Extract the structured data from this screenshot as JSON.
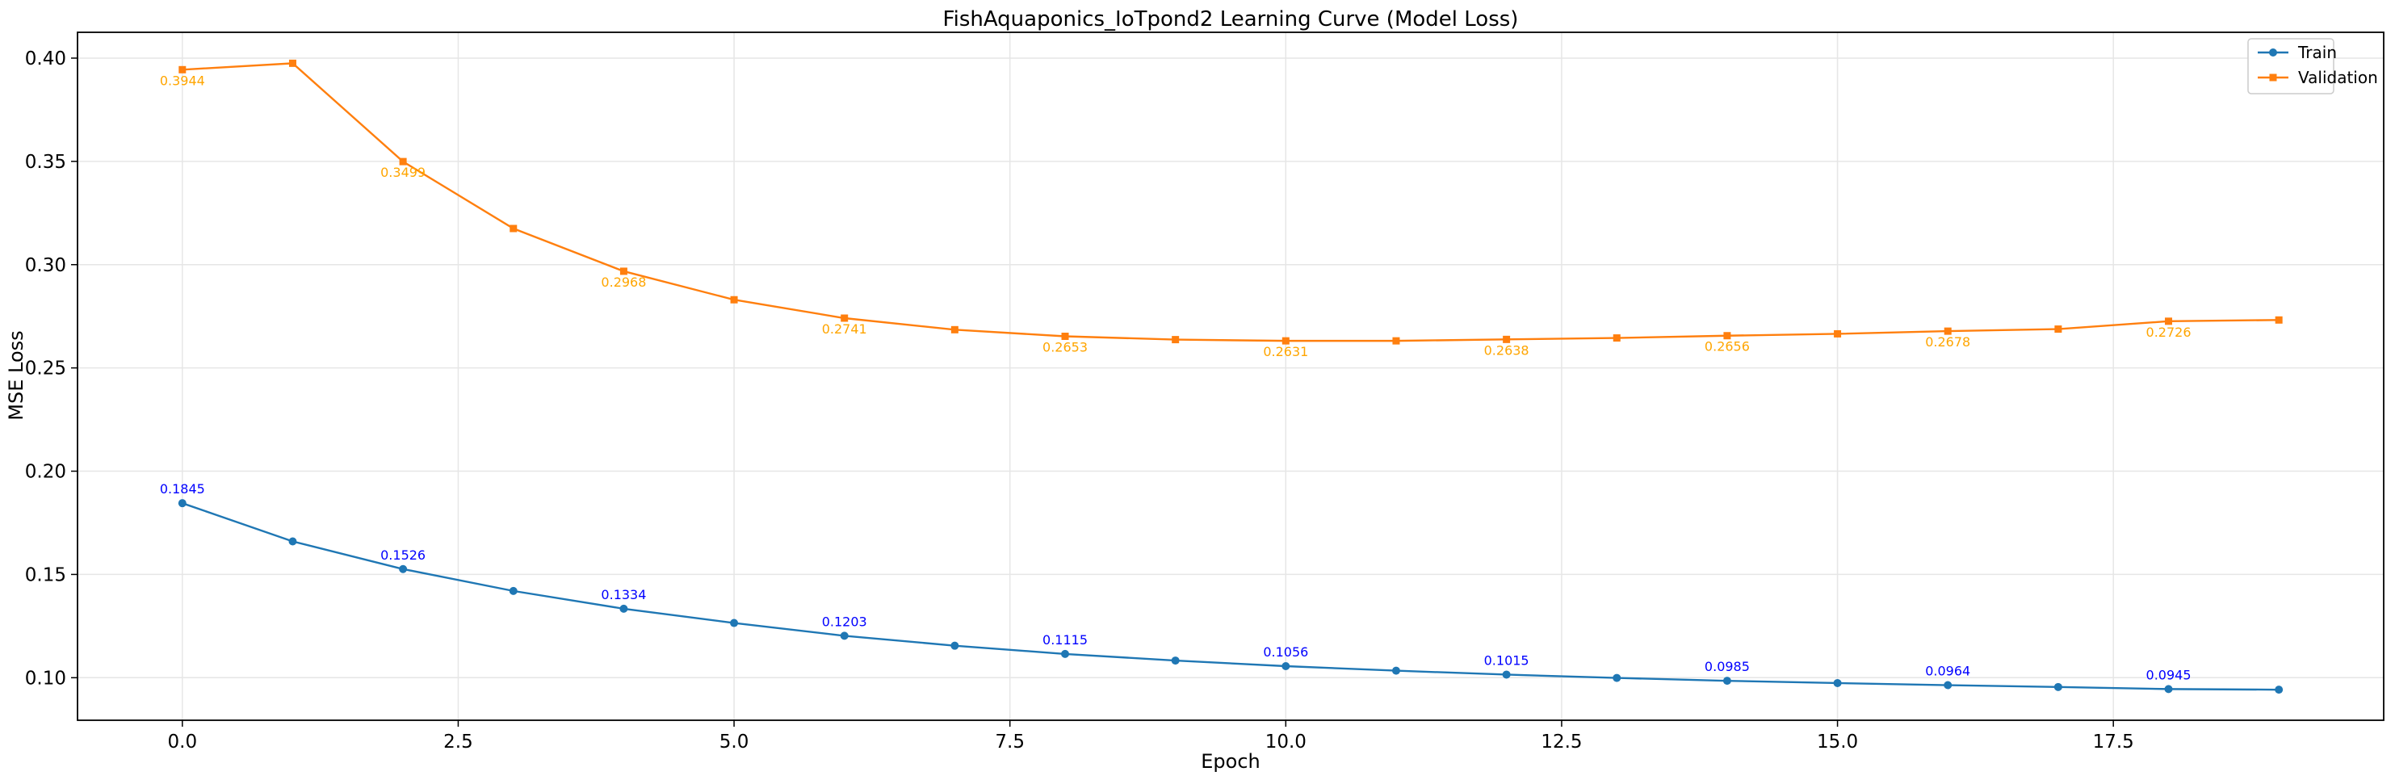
{
  "chart_data": {
    "type": "line",
    "title": "FishAquaponics_IoTpond2 Learning Curve (Model Loss)",
    "xlabel": "Epoch",
    "ylabel": "MSE Loss",
    "xlim": [
      -0.95,
      19.95
    ],
    "ylim": [
      0.0794,
      0.4125
    ],
    "xticks": [
      0.0,
      2.5,
      5.0,
      7.5,
      10.0,
      12.5,
      15.0,
      17.5
    ],
    "xtick_labels": [
      "0.0",
      "2.5",
      "5.0",
      "7.5",
      "10.0",
      "12.5",
      "15.0",
      "17.5"
    ],
    "yticks": [
      0.1,
      0.15,
      0.2,
      0.25,
      0.3,
      0.35,
      0.4
    ],
    "ytick_labels": [
      "0.10",
      "0.15",
      "0.20",
      "0.25",
      "0.30",
      "0.35",
      "0.40"
    ],
    "grid": true,
    "legend_position": "top-right",
    "x": [
      0,
      1,
      2,
      3,
      4,
      5,
      6,
      7,
      8,
      9,
      10,
      11,
      12,
      13,
      14,
      15,
      16,
      17,
      18,
      19
    ],
    "series": [
      {
        "name": "Train",
        "color": "#1f77b4",
        "label_color": "#0000ff",
        "marker": "circle",
        "values": [
          0.1845,
          0.166,
          0.1526,
          0.142,
          0.1334,
          0.1265,
          0.1203,
          0.1155,
          0.1115,
          0.1083,
          0.1056,
          0.1034,
          0.1015,
          0.0999,
          0.0985,
          0.0974,
          0.0964,
          0.0955,
          0.0945,
          0.0942
        ],
        "labels": [
          "0.1845",
          "",
          "0.1526",
          "",
          "0.1334",
          "",
          "0.1203",
          "",
          "0.1115",
          "",
          "0.1056",
          "",
          "0.1015",
          "",
          "0.0985",
          "",
          "0.0964",
          "",
          "0.0945",
          ""
        ]
      },
      {
        "name": "Validation",
        "color": "#ff7f0e",
        "label_color": "#ffa500",
        "marker": "square",
        "values": [
          0.3944,
          0.3975,
          0.3499,
          0.3175,
          0.2968,
          0.283,
          0.2741,
          0.2685,
          0.2653,
          0.2637,
          0.2631,
          0.2631,
          0.2638,
          0.2645,
          0.2656,
          0.2665,
          0.2678,
          0.2688,
          0.2726,
          0.2732
        ],
        "labels": [
          "0.3944",
          "",
          "0.3499",
          "",
          "0.2968",
          "",
          "0.2741",
          "",
          "0.2653",
          "",
          "0.2631",
          "",
          "0.2638",
          "",
          "0.2656",
          "",
          "0.2678",
          "",
          "0.2726",
          ""
        ]
      }
    ]
  }
}
